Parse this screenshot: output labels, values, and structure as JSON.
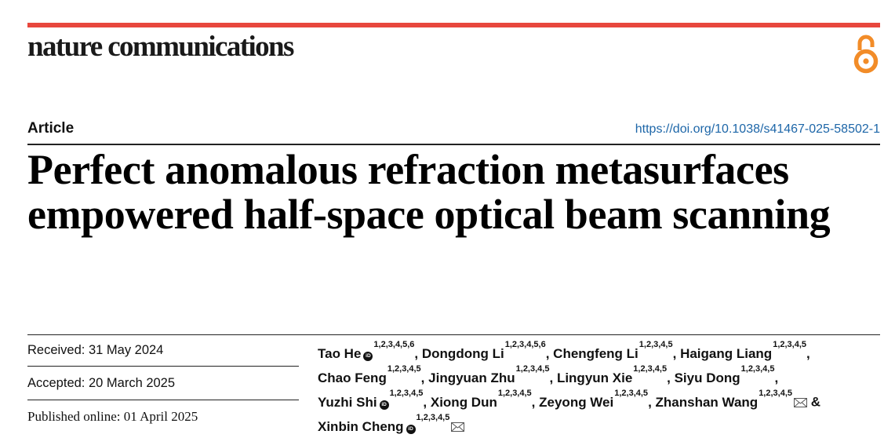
{
  "header": {
    "journal_name": "nature communications",
    "accent_color": "#e8473d",
    "open_access_icon": "open-access-icon",
    "open_access_color": "#f28c28"
  },
  "meta": {
    "article_type": "Article",
    "doi": "https://doi.org/10.1038/s41467-025-58502-1"
  },
  "title": "Perfect anomalous refraction metasurfaces empowered half-space optical beam scanning",
  "dates": {
    "received": "Received: 31 May 2024",
    "accepted": "Accepted: 20 March 2025",
    "published": "Published online: 01 April 2025"
  },
  "authors": [
    {
      "name": "Tao He",
      "aff": "1,2,3,4,5,6",
      "orcid": true,
      "corresponding": false
    },
    {
      "name": "Dongdong Li",
      "aff": "1,2,3,4,5,6",
      "orcid": false,
      "corresponding": false
    },
    {
      "name": "Chengfeng Li",
      "aff": "1,2,3,4,5",
      "orcid": false,
      "corresponding": false
    },
    {
      "name": "Haigang Liang",
      "aff": "1,2,3,4,5",
      "orcid": false,
      "corresponding": false
    },
    {
      "name": "Chao Feng",
      "aff": "1,2,3,4,5",
      "orcid": false,
      "corresponding": false
    },
    {
      "name": "Jingyuan Zhu",
      "aff": "1,2,3,4,5",
      "orcid": false,
      "corresponding": false
    },
    {
      "name": "Lingyun Xie",
      "aff": "1,2,3,4,5",
      "orcid": false,
      "corresponding": false
    },
    {
      "name": "Siyu Dong",
      "aff": "1,2,3,4,5",
      "orcid": false,
      "corresponding": false
    },
    {
      "name": "Yuzhi Shi",
      "aff": "1,2,3,4,5",
      "orcid": true,
      "corresponding": false
    },
    {
      "name": "Xiong Dun",
      "aff": "1,2,3,4,5",
      "orcid": false,
      "corresponding": false
    },
    {
      "name": "Zeyong Wei",
      "aff": "1,2,3,4,5",
      "orcid": false,
      "corresponding": false
    },
    {
      "name": "Zhanshan Wang",
      "aff": "1,2,3,4,5",
      "orcid": false,
      "corresponding": true
    },
    {
      "name": "Xinbin Cheng",
      "aff": "1,2,3,4,5",
      "orcid": true,
      "corresponding": true
    }
  ],
  "separators": {
    "comma": ",",
    "ampersand": "&"
  }
}
